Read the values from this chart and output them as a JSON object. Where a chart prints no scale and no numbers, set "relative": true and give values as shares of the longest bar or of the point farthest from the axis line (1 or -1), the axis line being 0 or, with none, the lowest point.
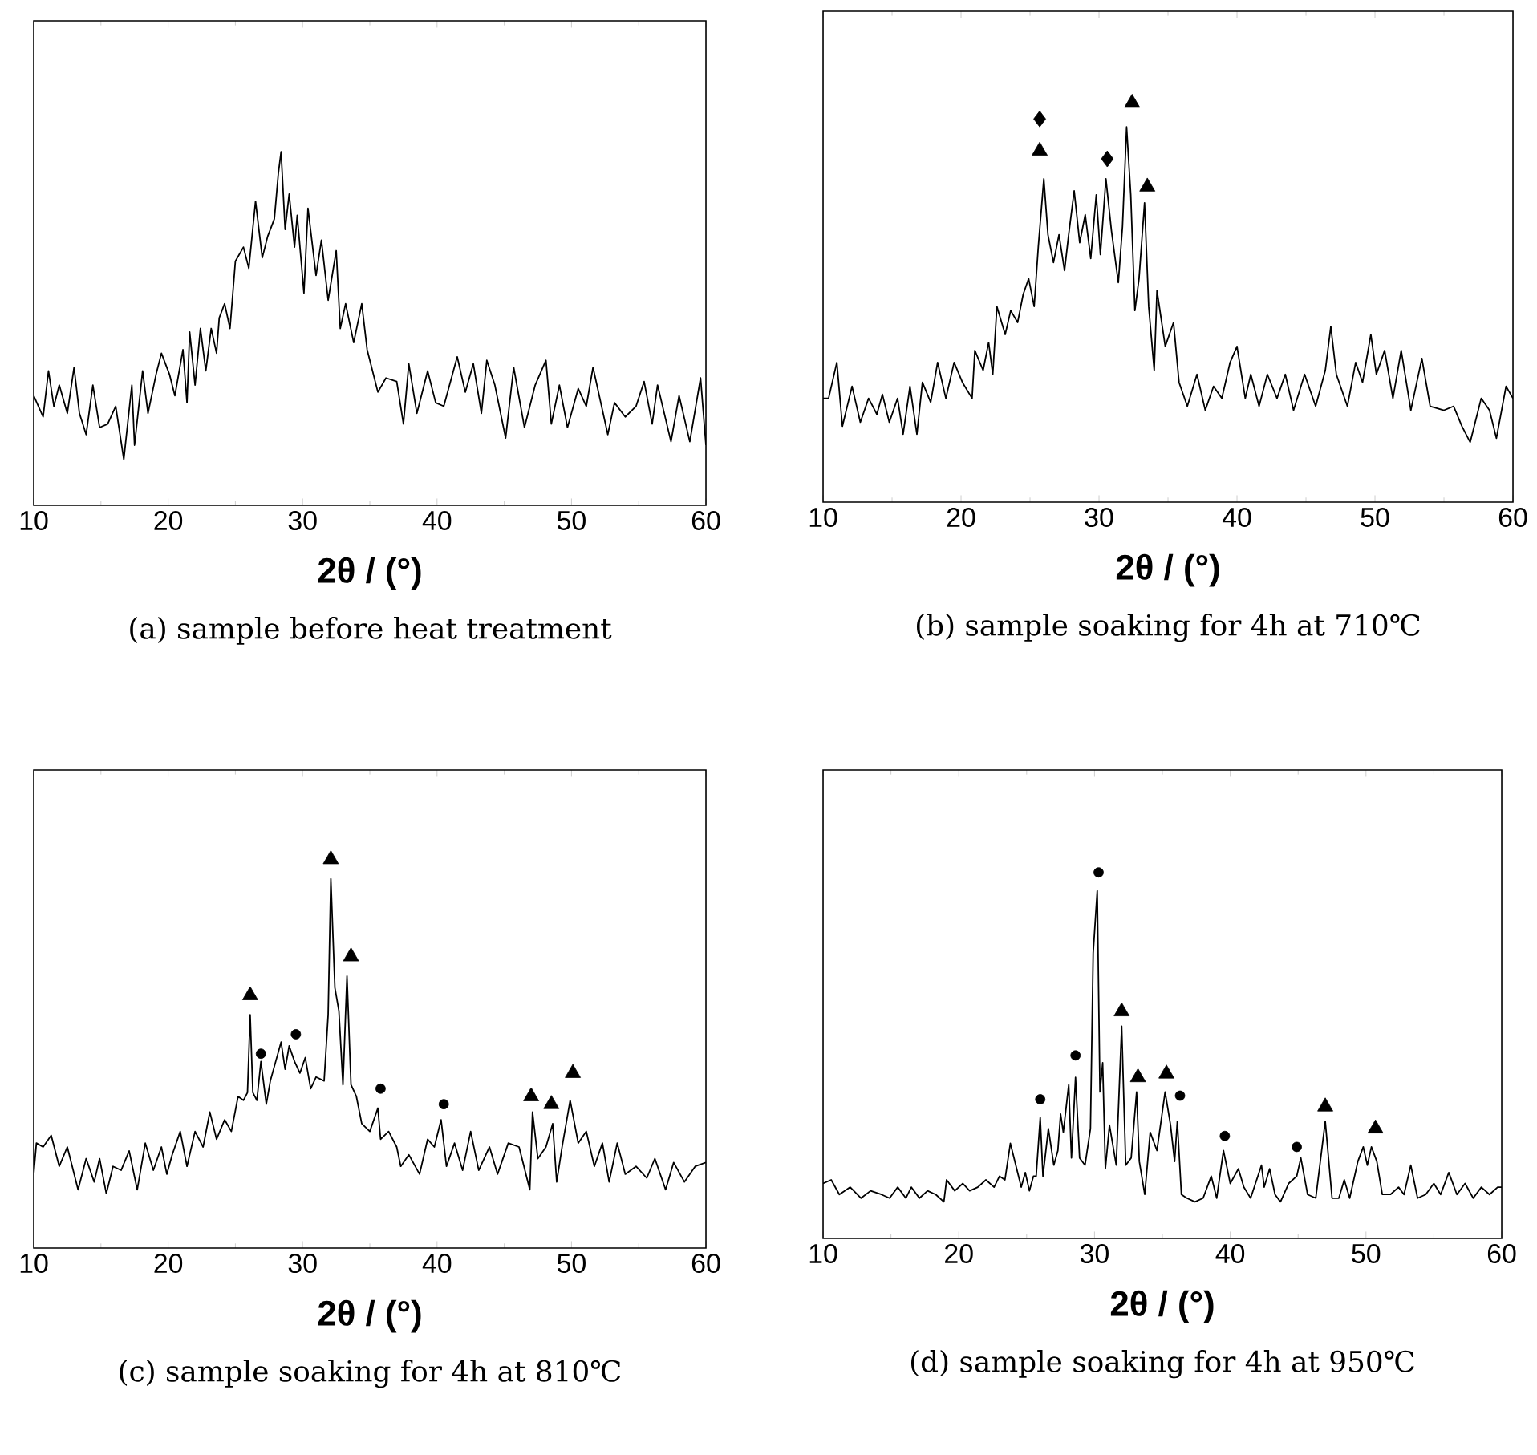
{
  "chart_data": [
    {
      "type": "line",
      "title": "(a)    sample before heat treatment",
      "xlabel": "2θ /  (°)",
      "xlim": [
        10,
        60
      ],
      "xticks": [
        10,
        20,
        30,
        40,
        50,
        60
      ],
      "relative": true,
      "series": [
        {
          "type": "line",
          "color": "#000000",
          "marker": "none",
          "x": [
            10.0,
            10.7,
            11.1,
            11.5,
            11.9,
            12.5,
            13.0,
            13.4,
            13.9,
            14.4,
            14.9,
            15.5,
            16.1,
            16.7,
            17.3,
            17.5,
            18.1,
            18.5,
            19.1,
            19.5,
            20.1,
            20.5,
            21.1,
            21.4,
            21.6,
            22.0,
            22.4,
            22.8,
            23.2,
            23.6,
            23.8,
            24.2,
            24.6,
            25.0,
            25.6,
            26.0,
            26.5,
            27.0,
            27.4,
            27.9,
            28.2,
            28.4,
            28.7,
            29.0,
            29.4,
            29.6,
            30.1,
            30.4,
            31.0,
            31.4,
            31.9,
            32.5,
            32.8,
            33.2,
            33.8,
            34.4,
            34.8,
            35.6,
            36.2,
            37.0,
            37.5,
            37.9,
            38.5,
            39.3,
            39.9,
            40.5,
            41.5,
            42.1,
            42.7,
            43.3,
            43.7,
            44.3,
            45.1,
            45.7,
            46.5,
            47.3,
            48.1,
            48.5,
            49.1,
            49.7,
            50.5,
            51.1,
            51.6,
            52.7,
            53.2,
            54.0,
            54.8,
            55.4,
            56.0,
            56.4,
            57.4,
            58.0,
            58.8,
            59.6,
            60.0
          ],
          "values": [
            0.31,
            0.25,
            0.38,
            0.28,
            0.34,
            0.26,
            0.39,
            0.26,
            0.2,
            0.34,
            0.22,
            0.23,
            0.28,
            0.13,
            0.34,
            0.17,
            0.38,
            0.26,
            0.37,
            0.43,
            0.37,
            0.31,
            0.44,
            0.29,
            0.49,
            0.34,
            0.5,
            0.38,
            0.5,
            0.43,
            0.53,
            0.57,
            0.5,
            0.69,
            0.73,
            0.67,
            0.86,
            0.7,
            0.76,
            0.81,
            0.94,
            1.0,
            0.78,
            0.88,
            0.73,
            0.82,
            0.6,
            0.84,
            0.65,
            0.75,
            0.58,
            0.72,
            0.5,
            0.57,
            0.46,
            0.57,
            0.44,
            0.32,
            0.36,
            0.35,
            0.23,
            0.4,
            0.26,
            0.38,
            0.29,
            0.28,
            0.42,
            0.32,
            0.4,
            0.26,
            0.41,
            0.34,
            0.19,
            0.39,
            0.22,
            0.34,
            0.41,
            0.23,
            0.34,
            0.22,
            0.33,
            0.28,
            0.39,
            0.2,
            0.29,
            0.25,
            0.28,
            0.35,
            0.23,
            0.34,
            0.18,
            0.31,
            0.18,
            0.36,
            0.17
          ]
        }
      ]
    },
    {
      "type": "line",
      "title": "(b) sample soaking for 4h at 710℃",
      "xlabel": "2θ /  (°)",
      "xlim": [
        10,
        60
      ],
      "xticks": [
        10,
        20,
        30,
        40,
        50,
        60
      ],
      "relative": true,
      "series": [
        {
          "type": "line",
          "color": "#000000",
          "marker": "none",
          "x": [
            10.0,
            10.4,
            11.0,
            11.4,
            12.1,
            12.7,
            13.3,
            13.9,
            14.3,
            14.8,
            15.4,
            15.8,
            16.3,
            16.8,
            17.2,
            17.8,
            18.3,
            18.9,
            19.5,
            20.1,
            20.8,
            21.0,
            21.6,
            22.0,
            22.3,
            22.6,
            23.2,
            23.6,
            24.1,
            24.5,
            24.9,
            25.3,
            25.6,
            26.0,
            26.3,
            26.7,
            27.1,
            27.5,
            27.8,
            28.2,
            28.6,
            29.0,
            29.4,
            29.8,
            30.1,
            30.5,
            30.9,
            31.4,
            31.7,
            32.0,
            32.3,
            32.6,
            32.9,
            33.3,
            33.6,
            34.0,
            34.2,
            34.8,
            35.4,
            35.8,
            36.4,
            37.1,
            37.7,
            38.3,
            38.9,
            39.5,
            40.0,
            40.6,
            41.0,
            41.6,
            42.2,
            42.9,
            43.5,
            44.1,
            44.9,
            45.7,
            46.4,
            46.8,
            47.2,
            48.0,
            48.6,
            49.1,
            49.7,
            50.1,
            50.7,
            51.3,
            51.9,
            52.6,
            53.4,
            54.0,
            55.0,
            55.7,
            56.3,
            56.9,
            57.7,
            58.3,
            58.8,
            59.5,
            60.0
          ],
          "values": [
            0.26,
            0.26,
            0.35,
            0.19,
            0.29,
            0.2,
            0.26,
            0.22,
            0.27,
            0.2,
            0.26,
            0.17,
            0.29,
            0.17,
            0.3,
            0.25,
            0.35,
            0.26,
            0.35,
            0.3,
            0.26,
            0.38,
            0.33,
            0.4,
            0.32,
            0.49,
            0.42,
            0.48,
            0.45,
            0.52,
            0.56,
            0.49,
            0.64,
            0.81,
            0.67,
            0.6,
            0.67,
            0.58,
            0.67,
            0.78,
            0.65,
            0.72,
            0.61,
            0.77,
            0.62,
            0.81,
            0.68,
            0.55,
            0.69,
            0.94,
            0.77,
            0.48,
            0.56,
            0.75,
            0.49,
            0.33,
            0.53,
            0.39,
            0.45,
            0.3,
            0.24,
            0.32,
            0.23,
            0.29,
            0.26,
            0.35,
            0.39,
            0.26,
            0.32,
            0.24,
            0.32,
            0.26,
            0.32,
            0.23,
            0.32,
            0.24,
            0.33,
            0.44,
            0.32,
            0.24,
            0.35,
            0.3,
            0.42,
            0.32,
            0.38,
            0.26,
            0.38,
            0.23,
            0.36,
            0.24,
            0.23,
            0.24,
            0.19,
            0.15,
            0.26,
            0.23,
            0.16,
            0.29,
            0.26
          ]
        },
        {
          "type": "scatter",
          "color": "#000000",
          "marker": "diamond",
          "x": [
            25.7,
            30.6
          ],
          "values": [
            0.96,
            0.86
          ]
        },
        {
          "type": "scatter",
          "color": "#000000",
          "marker": "triangle",
          "x": [
            25.7,
            32.4,
            33.5
          ],
          "values": [
            0.88,
            1.0,
            0.79
          ]
        }
      ]
    },
    {
      "type": "line",
      "title": "(c) sample soaking for 4h at 810℃",
      "xlabel": "2θ /  (°)",
      "xlim": [
        10,
        60
      ],
      "xticks": [
        10,
        20,
        30,
        40,
        50,
        60
      ],
      "relative": true,
      "series": [
        {
          "type": "line",
          "color": "#000000",
          "marker": "none",
          "x": [
            10.0,
            10.2,
            10.7,
            11.3,
            11.9,
            12.5,
            13.3,
            13.9,
            14.5,
            14.9,
            15.4,
            15.9,
            16.5,
            17.1,
            17.7,
            18.3,
            18.9,
            19.5,
            19.9,
            20.3,
            20.9,
            21.4,
            22.0,
            22.6,
            23.1,
            23.6,
            24.2,
            24.7,
            25.2,
            25.6,
            25.9,
            26.1,
            26.3,
            26.6,
            26.9,
            27.3,
            27.6,
            28.0,
            28.4,
            28.7,
            29.0,
            29.4,
            29.8,
            30.2,
            30.6,
            31.0,
            31.6,
            31.9,
            32.1,
            32.4,
            32.7,
            33.0,
            33.3,
            33.6,
            34.0,
            34.4,
            35.0,
            35.6,
            35.8,
            36.4,
            37.0,
            37.3,
            37.9,
            38.7,
            39.3,
            39.8,
            40.3,
            40.7,
            41.3,
            41.9,
            42.5,
            43.1,
            43.9,
            44.5,
            45.3,
            46.1,
            46.9,
            47.1,
            47.5,
            48.1,
            48.6,
            48.9,
            49.3,
            49.9,
            50.5,
            51.1,
            51.7,
            52.3,
            52.8,
            53.4,
            54.0,
            54.8,
            55.6,
            56.2,
            57.0,
            57.6,
            58.4,
            59.2,
            60.0
          ],
          "values": [
            0.19,
            0.27,
            0.26,
            0.29,
            0.21,
            0.26,
            0.15,
            0.23,
            0.17,
            0.23,
            0.14,
            0.21,
            0.2,
            0.25,
            0.15,
            0.27,
            0.2,
            0.26,
            0.19,
            0.24,
            0.3,
            0.21,
            0.3,
            0.26,
            0.35,
            0.28,
            0.33,
            0.3,
            0.39,
            0.38,
            0.4,
            0.6,
            0.4,
            0.38,
            0.48,
            0.37,
            0.43,
            0.48,
            0.53,
            0.46,
            0.52,
            0.48,
            0.45,
            0.49,
            0.41,
            0.44,
            0.43,
            0.6,
            0.95,
            0.67,
            0.61,
            0.42,
            0.7,
            0.42,
            0.39,
            0.32,
            0.3,
            0.36,
            0.28,
            0.3,
            0.26,
            0.21,
            0.24,
            0.19,
            0.28,
            0.26,
            0.33,
            0.21,
            0.27,
            0.2,
            0.3,
            0.2,
            0.26,
            0.19,
            0.27,
            0.26,
            0.15,
            0.35,
            0.23,
            0.26,
            0.32,
            0.17,
            0.26,
            0.38,
            0.27,
            0.3,
            0.21,
            0.27,
            0.17,
            0.27,
            0.19,
            0.21,
            0.18,
            0.23,
            0.15,
            0.22,
            0.17,
            0.21,
            0.22
          ]
        },
        {
          "type": "scatter",
          "color": "#000000",
          "marker": "triangle",
          "x": [
            26.1,
            32.1,
            33.6,
            47.0,
            48.5,
            50.1
          ],
          "values": [
            0.65,
            1.0,
            0.75,
            0.39,
            0.37,
            0.45
          ]
        },
        {
          "type": "scatter",
          "color": "#000000",
          "marker": "circle",
          "x": [
            26.9,
            29.5,
            35.8,
            40.5
          ],
          "values": [
            0.5,
            0.55,
            0.41,
            0.37
          ]
        }
      ]
    },
    {
      "type": "line",
      "title": "(d) sample soaking for 4h at 950℃",
      "xlabel": "2θ /  (°)",
      "xlim": [
        10,
        60
      ],
      "xticks": [
        10,
        20,
        30,
        40,
        50,
        60
      ],
      "relative": true,
      "series": [
        {
          "type": "line",
          "color": "#000000",
          "marker": "none",
          "x": [
            10.0,
            10.6,
            11.2,
            12.0,
            12.8,
            13.5,
            14.3,
            14.9,
            15.5,
            16.1,
            16.5,
            17.1,
            17.7,
            18.3,
            18.9,
            19.1,
            19.7,
            20.3,
            20.8,
            21.4,
            22.0,
            22.6,
            23.0,
            23.4,
            23.8,
            24.2,
            24.6,
            24.9,
            25.2,
            25.5,
            25.7,
            26.0,
            26.2,
            26.6,
            27.0,
            27.3,
            27.5,
            27.7,
            28.1,
            28.3,
            28.6,
            28.9,
            29.3,
            29.7,
            29.9,
            30.2,
            30.4,
            30.6,
            30.8,
            31.1,
            31.6,
            32.0,
            32.3,
            32.7,
            33.1,
            33.3,
            33.7,
            34.1,
            34.6,
            35.2,
            35.6,
            35.9,
            36.1,
            36.4,
            36.8,
            37.4,
            38.0,
            38.6,
            39.0,
            39.5,
            40.0,
            40.6,
            41.0,
            41.5,
            42.3,
            42.5,
            42.9,
            43.3,
            43.7,
            44.3,
            44.9,
            45.2,
            45.7,
            46.3,
            47.0,
            47.5,
            48.0,
            48.4,
            48.8,
            49.4,
            49.8,
            50.1,
            50.4,
            50.8,
            51.2,
            51.8,
            52.4,
            52.8,
            53.3,
            53.8,
            54.4,
            55.0,
            55.5,
            56.1,
            56.7,
            57.3,
            57.9,
            58.5,
            59.1,
            59.7,
            60.0
          ],
          "values": [
            0.15,
            0.16,
            0.12,
            0.14,
            0.11,
            0.13,
            0.12,
            0.11,
            0.14,
            0.11,
            0.14,
            0.11,
            0.13,
            0.12,
            0.1,
            0.16,
            0.13,
            0.15,
            0.13,
            0.14,
            0.16,
            0.14,
            0.17,
            0.16,
            0.26,
            0.2,
            0.14,
            0.18,
            0.13,
            0.17,
            0.17,
            0.33,
            0.17,
            0.3,
            0.2,
            0.24,
            0.34,
            0.29,
            0.42,
            0.22,
            0.44,
            0.22,
            0.2,
            0.3,
            0.78,
            0.95,
            0.4,
            0.48,
            0.19,
            0.31,
            0.2,
            0.58,
            0.2,
            0.22,
            0.4,
            0.21,
            0.12,
            0.29,
            0.24,
            0.4,
            0.31,
            0.21,
            0.32,
            0.12,
            0.11,
            0.1,
            0.11,
            0.17,
            0.11,
            0.24,
            0.15,
            0.19,
            0.14,
            0.11,
            0.2,
            0.14,
            0.19,
            0.12,
            0.1,
            0.15,
            0.17,
            0.22,
            0.12,
            0.11,
            0.32,
            0.11,
            0.11,
            0.16,
            0.11,
            0.21,
            0.25,
            0.2,
            0.25,
            0.21,
            0.12,
            0.12,
            0.14,
            0.12,
            0.2,
            0.11,
            0.12,
            0.15,
            0.12,
            0.18,
            0.12,
            0.15,
            0.11,
            0.14,
            0.12,
            0.14,
            0.14
          ]
        },
        {
          "type": "scatter",
          "color": "#000000",
          "marker": "circle",
          "x": [
            26.0,
            28.6,
            30.3,
            36.3,
            39.6,
            44.9
          ],
          "values": [
            0.38,
            0.5,
            1.0,
            0.39,
            0.28,
            0.25
          ]
        },
        {
          "type": "scatter",
          "color": "#000000",
          "marker": "triangle",
          "x": [
            32.0,
            33.2,
            35.3,
            47.0,
            50.7
          ],
          "values": [
            0.62,
            0.44,
            0.45,
            0.36,
            0.3
          ]
        }
      ]
    }
  ]
}
